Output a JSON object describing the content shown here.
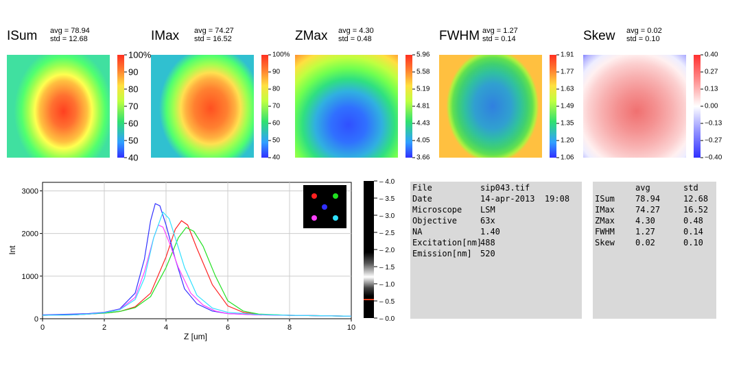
{
  "panels": [
    {
      "title": "ISum",
      "avg": "avg = 78.94",
      "std": "std = 12.68",
      "ticks": [
        "100%",
        "90",
        "80",
        "70",
        "60",
        "50",
        "40"
      ]
    },
    {
      "title": "IMax",
      "avg": "avg = 74.27",
      "std": "std = 16.52",
      "ticks": [
        "100%",
        "90",
        "80",
        "70",
        "60",
        "50",
        "40"
      ]
    },
    {
      "title": "ZMax",
      "avg": "avg = 4.30",
      "std": "std = 0.48",
      "ticks": [
        "5.96",
        "5.58",
        "5.19",
        "4.81",
        "4.43",
        "4.05",
        "3.66"
      ]
    },
    {
      "title": "FWHM",
      "avg": "avg = 1.27",
      "std": "std = 0.14",
      "ticks": [
        "1.91",
        "1.77",
        "1.63",
        "1.49",
        "1.35",
        "1.20",
        "1.06"
      ]
    },
    {
      "title": "Skew",
      "avg": "avg = 0.02",
      "std": "std = 0.10",
      "ticks": [
        "0.40",
        "0.27",
        "0.13",
        "0.00",
        "−0.13",
        "−0.27",
        "−0.40"
      ]
    }
  ],
  "chart_data": {
    "type": "line",
    "xlabel": "Z [um]",
    "ylabel": "Int",
    "xlim": [
      0,
      10
    ],
    "ylim": [
      0,
      3200
    ],
    "xticks": [
      "0",
      "2",
      "4",
      "6",
      "8",
      "10"
    ],
    "yticks": [
      "0",
      "1000",
      "2000",
      "3000"
    ],
    "grid": true,
    "legend": "top-right",
    "series": [
      {
        "color": "#ff2020",
        "peak_x": 4.5,
        "peak_y": 2300,
        "x": [
          0,
          1,
          1.5,
          2,
          2.5,
          3,
          3.5,
          4,
          4.3,
          4.5,
          4.7,
          5,
          5.5,
          6,
          6.5,
          7,
          8,
          9,
          10
        ],
        "values": [
          80,
          90,
          110,
          130,
          170,
          280,
          600,
          1450,
          2100,
          2300,
          2200,
          1650,
          800,
          300,
          150,
          100,
          80,
          70,
          60
        ]
      },
      {
        "color": "#20e020",
        "peak_x": 4.65,
        "peak_y": 2140,
        "x": [
          0,
          1,
          1.5,
          2,
          2.5,
          3,
          3.5,
          4,
          4.4,
          4.65,
          4.9,
          5.2,
          5.6,
          6,
          6.5,
          7,
          8,
          9,
          10
        ],
        "values": [
          80,
          90,
          110,
          130,
          170,
          260,
          520,
          1200,
          1900,
          2140,
          2050,
          1700,
          1000,
          420,
          180,
          110,
          80,
          70,
          60
        ]
      },
      {
        "color": "#3030ff",
        "peak_x": 3.65,
        "peak_y": 2700,
        "x": [
          0,
          0.5,
          1,
          1.5,
          2,
          2.5,
          3,
          3.3,
          3.5,
          3.65,
          3.8,
          4,
          4.3,
          4.6,
          5,
          5.5,
          6,
          7,
          8,
          9,
          10
        ],
        "values": [
          90,
          100,
          110,
          120,
          150,
          230,
          600,
          1400,
          2300,
          2700,
          2650,
          2200,
          1400,
          700,
          350,
          180,
          120,
          90,
          80,
          70,
          60
        ]
      },
      {
        "color": "#ff40ff",
        "peak_x": 3.75,
        "peak_y": 2200,
        "x": [
          0,
          1,
          1.5,
          2,
          2.5,
          3,
          3.3,
          3.6,
          3.75,
          3.9,
          4.1,
          4.4,
          4.8,
          5.2,
          5.6,
          6,
          7,
          8,
          9,
          10
        ],
        "values": [
          80,
          90,
          110,
          140,
          220,
          500,
          1100,
          1900,
          2200,
          2150,
          1800,
          1200,
          600,
          320,
          180,
          120,
          90,
          80,
          70,
          60
        ]
      },
      {
        "color": "#30e0ff",
        "peak_x": 3.9,
        "peak_y": 2500,
        "x": [
          0,
          1,
          1.5,
          2,
          2.5,
          3,
          3.3,
          3.6,
          3.9,
          4.1,
          4.3,
          4.6,
          5,
          5.5,
          6,
          7,
          8,
          9,
          10
        ],
        "values": [
          80,
          90,
          110,
          140,
          210,
          450,
          950,
          1900,
          2500,
          2350,
          1900,
          1200,
          550,
          250,
          150,
          100,
          80,
          70,
          60
        ]
      }
    ]
  },
  "gray_scale": {
    "ticks": [
      "4.0",
      "3.5",
      "3.0",
      "2.5",
      "2.0",
      "1.5",
      "1.0",
      "0.5",
      "0.0"
    ]
  },
  "info_box": {
    "rows": [
      {
        "key": "File",
        "value": "sip043.tif"
      },
      {
        "key": "Date",
        "value": "14-apr-2013  19:08"
      },
      {
        "key": "Microscope",
        "value": "LSM"
      },
      {
        "key": "Objective",
        "value": "63x"
      },
      {
        "key": "NA",
        "value": "1.40"
      },
      {
        "key": "Excitation[nm]",
        "value": "488"
      },
      {
        "key": "Emission[nm]",
        "value": "520"
      }
    ]
  },
  "stats_box": {
    "headers": [
      "",
      "avg",
      "std"
    ],
    "rows": [
      {
        "name": "ISum",
        "avg": "78.94",
        "std": "12.68"
      },
      {
        "name": "IMax",
        "avg": "74.27",
        "std": "16.52"
      },
      {
        "name": "ZMax",
        "avg": "4.30",
        "std": "0.48"
      },
      {
        "name": "FWHM",
        "avg": "1.27",
        "std": "0.14"
      },
      {
        "name": "Skew",
        "avg": "0.02",
        "std": "0.10"
      }
    ]
  },
  "colors": {
    "panel_bg": "#d9d9d9"
  }
}
